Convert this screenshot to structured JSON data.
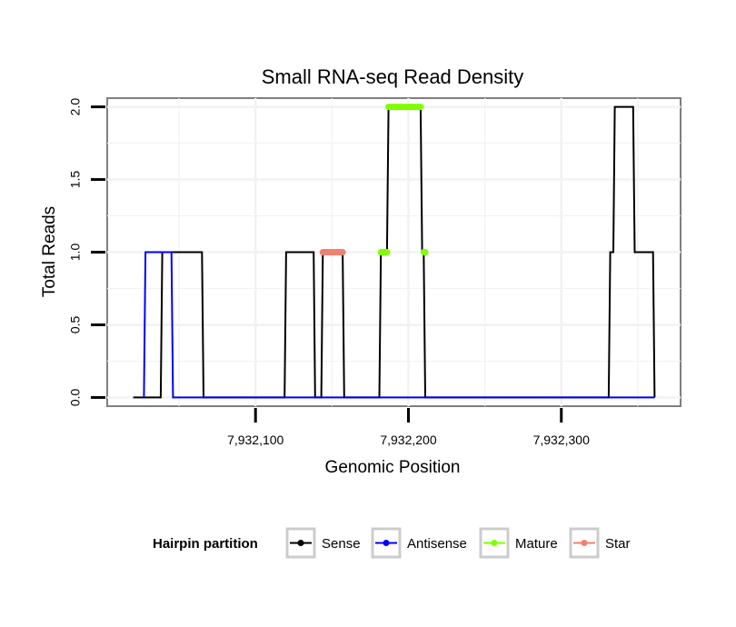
{
  "chart_data": {
    "type": "line",
    "title": "Small RNA-seq Read Density",
    "xlabel": "Genomic Position",
    "ylabel": "Total Reads",
    "xlim": [
      7932003,
      7932378
    ],
    "ylim": [
      -0.06,
      2.06
    ],
    "x_ticks": [
      7932100,
      7932200,
      7932300
    ],
    "x_tick_labels": [
      "7,932,100",
      "7,932,200",
      "7,932,300"
    ],
    "y_ticks": [
      0.0,
      0.5,
      1.0,
      1.5,
      2.0
    ],
    "y_tick_labels": [
      "0.0",
      "0.5",
      "1.0",
      "1.5",
      "2.0"
    ],
    "grid": true,
    "legend": {
      "title": "Hairpin partition",
      "position": "bottom",
      "entries": [
        "Sense",
        "Antisense",
        "Mature",
        "Star"
      ]
    },
    "series": [
      {
        "name": "Sense",
        "color": "#000000",
        "style": "line",
        "points": [
          [
            7932020,
            0
          ],
          [
            7932038,
            0
          ],
          [
            7932039,
            1
          ],
          [
            7932065,
            1
          ],
          [
            7932066,
            0
          ],
          [
            7932119,
            0
          ],
          [
            7932120,
            1
          ],
          [
            7932138,
            1
          ],
          [
            7932139,
            0
          ],
          [
            7932143,
            0
          ],
          [
            7932144,
            1
          ],
          [
            7932157,
            1
          ],
          [
            7932158,
            0
          ],
          [
            7932181,
            0
          ],
          [
            7932182,
            1
          ],
          [
            7932186,
            1
          ],
          [
            7932187,
            2
          ],
          [
            7932208,
            2
          ],
          [
            7932209,
            1
          ],
          [
            7932210,
            1
          ],
          [
            7932211,
            0
          ],
          [
            7932331,
            0
          ],
          [
            7932332,
            1
          ],
          [
            7932334,
            1
          ],
          [
            7932335,
            2
          ],
          [
            7932347,
            2
          ],
          [
            7932348,
            1
          ],
          [
            7932360,
            1
          ],
          [
            7932361,
            0
          ]
        ]
      },
      {
        "name": "Antisense",
        "color": "#0000ff",
        "style": "line",
        "points": [
          [
            7932027,
            0
          ],
          [
            7932028,
            1
          ],
          [
            7932045,
            1
          ],
          [
            7932046,
            0
          ],
          [
            7932361,
            0
          ]
        ]
      },
      {
        "name": "Mature",
        "color": "#7fff00",
        "style": "segments",
        "segments": [
          [
            7932182,
            7932186,
            1
          ],
          [
            7932187,
            7932208,
            2
          ],
          [
            7932210,
            7932211,
            1
          ]
        ]
      },
      {
        "name": "Star",
        "color": "#f08070",
        "style": "segments",
        "segments": [
          [
            7932144,
            7932157,
            1
          ]
        ]
      }
    ]
  }
}
